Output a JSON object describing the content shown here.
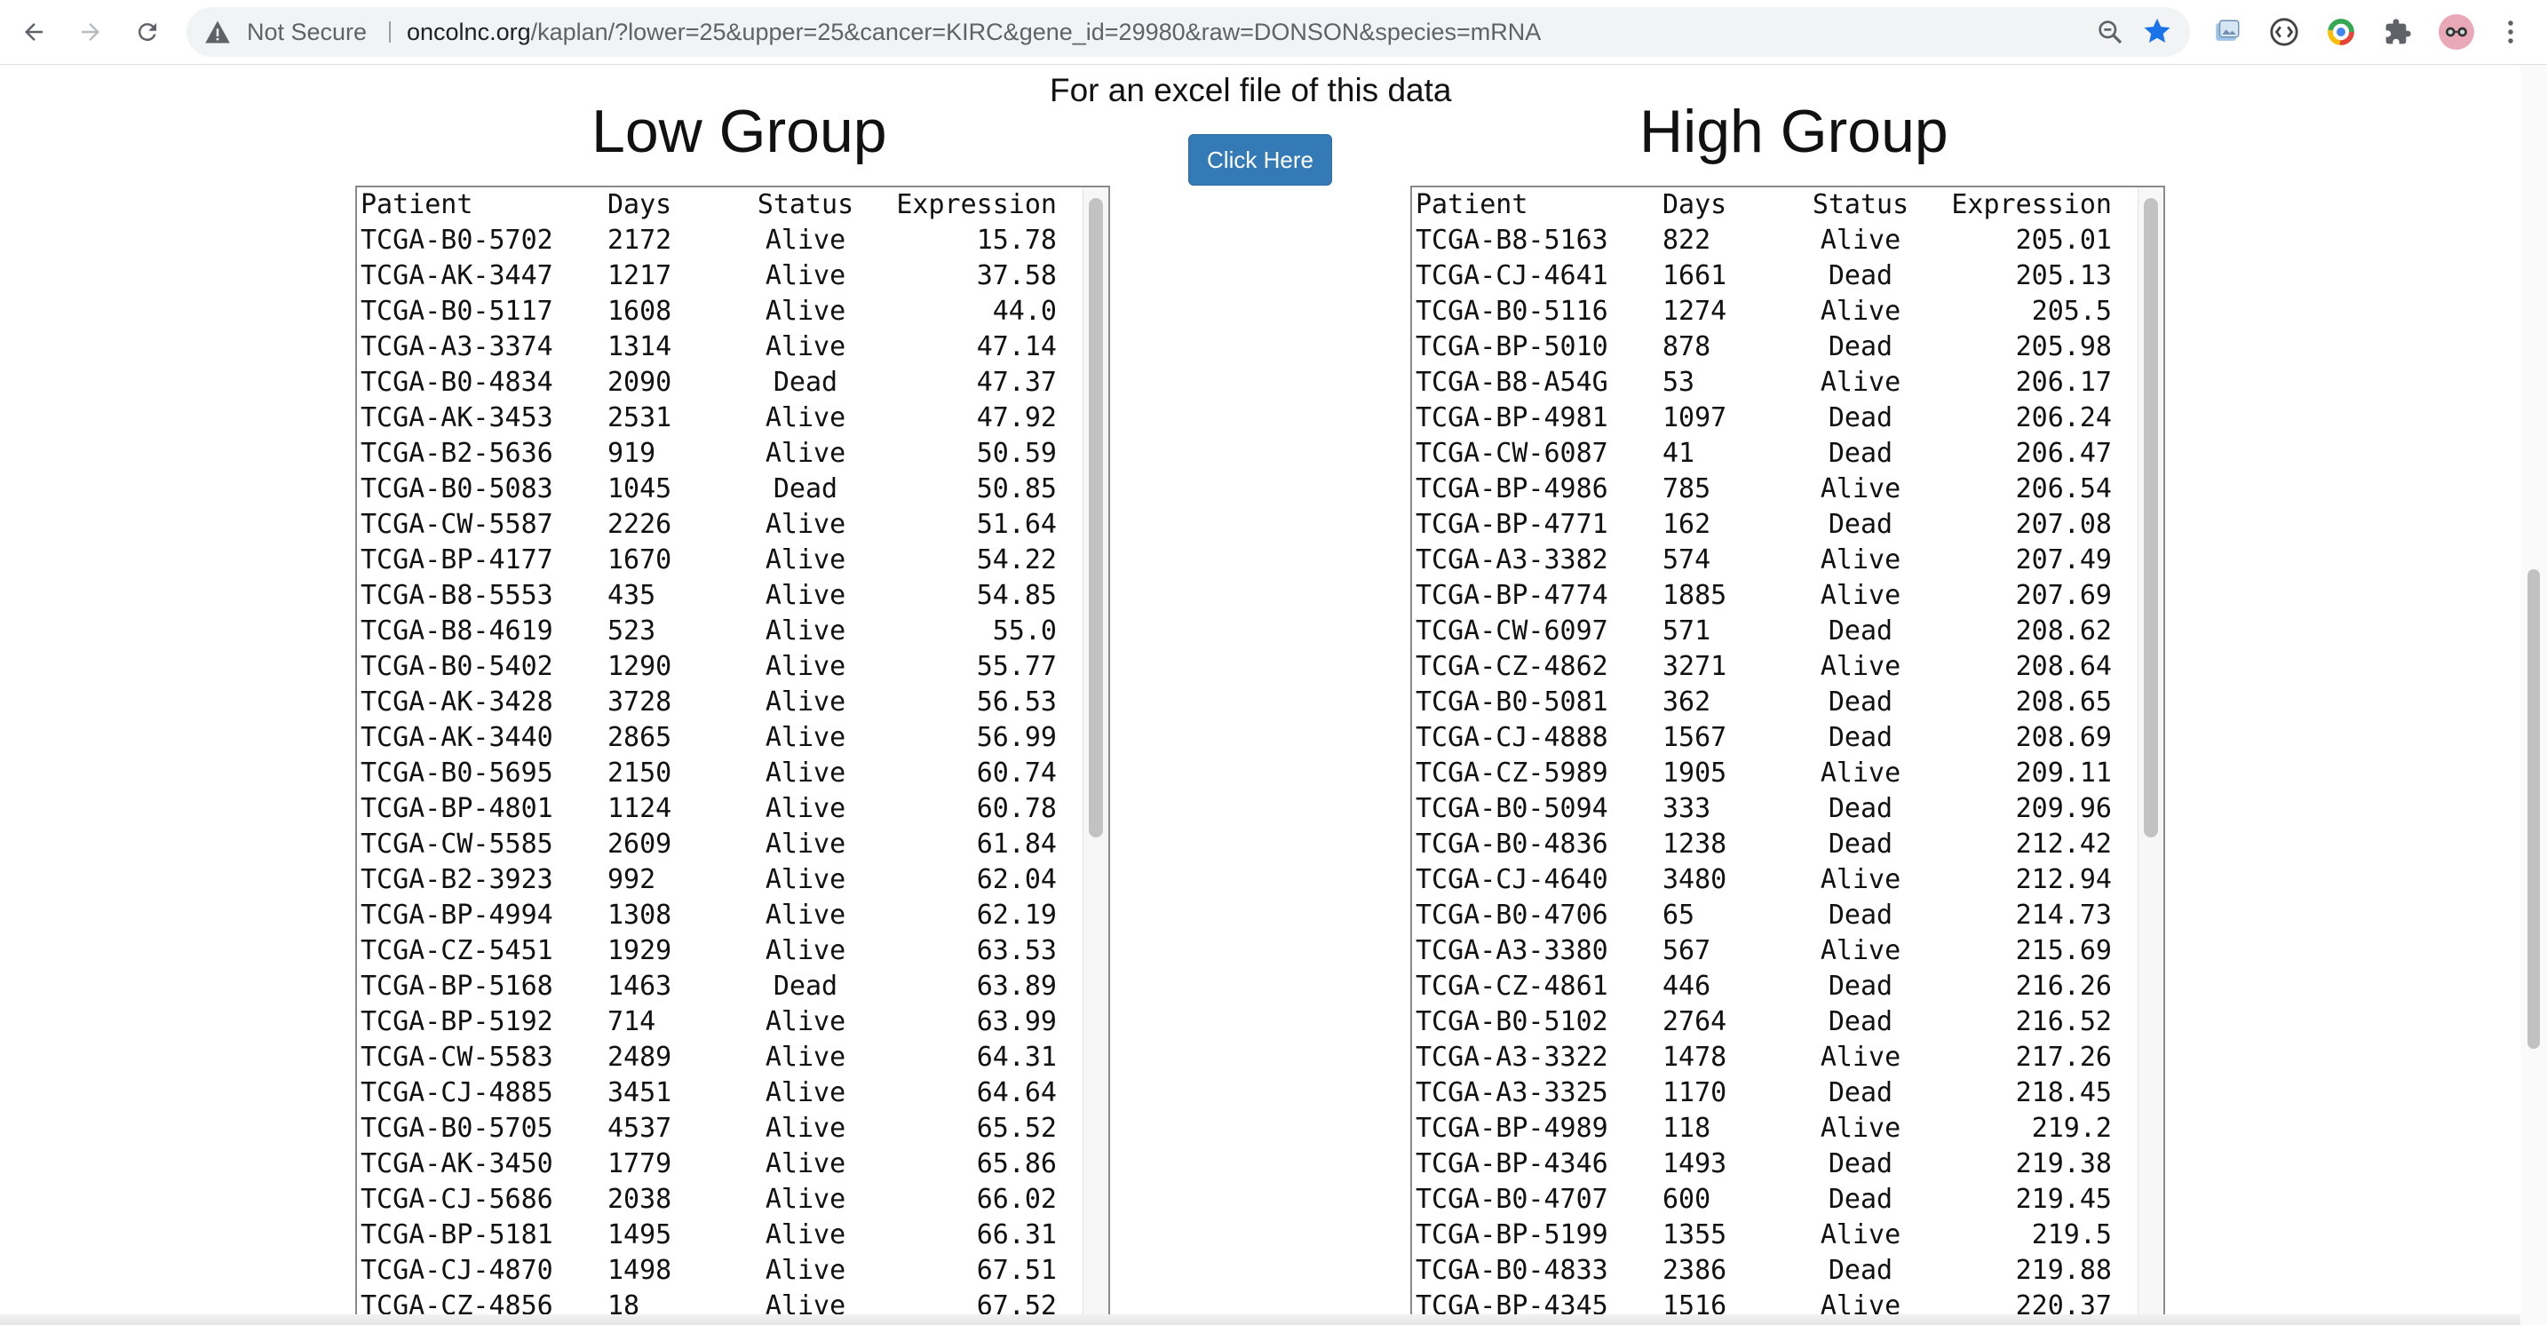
{
  "browser": {
    "security_label": "Not Secure",
    "url_host": "oncolnc.org",
    "url_path": "/kaplan/?lower=25&upper=25&cancer=KIRC&gene_id=29980&raw=DONSON&species=mRNA"
  },
  "page": {
    "excel_note": "For an excel file of this data",
    "click_label": "Click Here",
    "low_title": "Low Group",
    "high_title": "High Group",
    "columns": [
      "Patient",
      "Days",
      "Status",
      "Expression"
    ]
  },
  "low_rows": [
    [
      "TCGA-B0-5702",
      "2172",
      "Alive",
      "15.78"
    ],
    [
      "TCGA-AK-3447",
      "1217",
      "Alive",
      "37.58"
    ],
    [
      "TCGA-B0-5117",
      "1608",
      "Alive",
      "44.0"
    ],
    [
      "TCGA-A3-3374",
      "1314",
      "Alive",
      "47.14"
    ],
    [
      "TCGA-B0-4834",
      "2090",
      "Dead",
      "47.37"
    ],
    [
      "TCGA-AK-3453",
      "2531",
      "Alive",
      "47.92"
    ],
    [
      "TCGA-B2-5636",
      "919",
      "Alive",
      "50.59"
    ],
    [
      "TCGA-B0-5083",
      "1045",
      "Dead",
      "50.85"
    ],
    [
      "TCGA-CW-5587",
      "2226",
      "Alive",
      "51.64"
    ],
    [
      "TCGA-BP-4177",
      "1670",
      "Alive",
      "54.22"
    ],
    [
      "TCGA-B8-5553",
      "435",
      "Alive",
      "54.85"
    ],
    [
      "TCGA-B8-4619",
      "523",
      "Alive",
      "55.0"
    ],
    [
      "TCGA-B0-5402",
      "1290",
      "Alive",
      "55.77"
    ],
    [
      "TCGA-AK-3428",
      "3728",
      "Alive",
      "56.53"
    ],
    [
      "TCGA-AK-3440",
      "2865",
      "Alive",
      "56.99"
    ],
    [
      "TCGA-B0-5695",
      "2150",
      "Alive",
      "60.74"
    ],
    [
      "TCGA-BP-4801",
      "1124",
      "Alive",
      "60.78"
    ],
    [
      "TCGA-CW-5585",
      "2609",
      "Alive",
      "61.84"
    ],
    [
      "TCGA-B2-3923",
      "992",
      "Alive",
      "62.04"
    ],
    [
      "TCGA-BP-4994",
      "1308",
      "Alive",
      "62.19"
    ],
    [
      "TCGA-CZ-5451",
      "1929",
      "Alive",
      "63.53"
    ],
    [
      "TCGA-BP-5168",
      "1463",
      "Dead",
      "63.89"
    ],
    [
      "TCGA-BP-5192",
      "714",
      "Alive",
      "63.99"
    ],
    [
      "TCGA-CW-5583",
      "2489",
      "Alive",
      "64.31"
    ],
    [
      "TCGA-CJ-4885",
      "3451",
      "Alive",
      "64.64"
    ],
    [
      "TCGA-B0-5705",
      "4537",
      "Alive",
      "65.52"
    ],
    [
      "TCGA-AK-3450",
      "1779",
      "Alive",
      "65.86"
    ],
    [
      "TCGA-CJ-5686",
      "2038",
      "Alive",
      "66.02"
    ],
    [
      "TCGA-BP-5181",
      "1495",
      "Alive",
      "66.31"
    ],
    [
      "TCGA-CJ-4870",
      "1498",
      "Alive",
      "67.51"
    ],
    [
      "TCGA-CZ-4856",
      "18",
      "Alive",
      "67.52"
    ]
  ],
  "high_rows": [
    [
      "TCGA-B8-5163",
      "822",
      "Alive",
      "205.01"
    ],
    [
      "TCGA-CJ-4641",
      "1661",
      "Dead",
      "205.13"
    ],
    [
      "TCGA-B0-5116",
      "1274",
      "Alive",
      "205.5"
    ],
    [
      "TCGA-BP-5010",
      "878",
      "Dead",
      "205.98"
    ],
    [
      "TCGA-B8-A54G",
      "53",
      "Alive",
      "206.17"
    ],
    [
      "TCGA-BP-4981",
      "1097",
      "Dead",
      "206.24"
    ],
    [
      "TCGA-CW-6087",
      "41",
      "Dead",
      "206.47"
    ],
    [
      "TCGA-BP-4986",
      "785",
      "Alive",
      "206.54"
    ],
    [
      "TCGA-BP-4771",
      "162",
      "Dead",
      "207.08"
    ],
    [
      "TCGA-A3-3382",
      "574",
      "Alive",
      "207.49"
    ],
    [
      "TCGA-BP-4774",
      "1885",
      "Alive",
      "207.69"
    ],
    [
      "TCGA-CW-6097",
      "571",
      "Dead",
      "208.62"
    ],
    [
      "TCGA-CZ-4862",
      "3271",
      "Alive",
      "208.64"
    ],
    [
      "TCGA-B0-5081",
      "362",
      "Dead",
      "208.65"
    ],
    [
      "TCGA-CJ-4888",
      "1567",
      "Dead",
      "208.69"
    ],
    [
      "TCGA-CZ-5989",
      "1905",
      "Alive",
      "209.11"
    ],
    [
      "TCGA-B0-5094",
      "333",
      "Dead",
      "209.96"
    ],
    [
      "TCGA-B0-4836",
      "1238",
      "Dead",
      "212.42"
    ],
    [
      "TCGA-CJ-4640",
      "3480",
      "Alive",
      "212.94"
    ],
    [
      "TCGA-B0-4706",
      "65",
      "Dead",
      "214.73"
    ],
    [
      "TCGA-A3-3380",
      "567",
      "Alive",
      "215.69"
    ],
    [
      "TCGA-CZ-4861",
      "446",
      "Dead",
      "216.26"
    ],
    [
      "TCGA-B0-5102",
      "2764",
      "Dead",
      "216.52"
    ],
    [
      "TCGA-A3-3322",
      "1478",
      "Alive",
      "217.26"
    ],
    [
      "TCGA-A3-3325",
      "1170",
      "Dead",
      "218.45"
    ],
    [
      "TCGA-BP-4989",
      "118",
      "Alive",
      "219.2"
    ],
    [
      "TCGA-BP-4346",
      "1493",
      "Dead",
      "219.38"
    ],
    [
      "TCGA-B0-4707",
      "600",
      "Dead",
      "219.45"
    ],
    [
      "TCGA-BP-5199",
      "1355",
      "Alive",
      "219.5"
    ],
    [
      "TCGA-B0-4833",
      "2386",
      "Dead",
      "219.88"
    ],
    [
      "TCGA-BP-4345",
      "1516",
      "Alive",
      "220.37"
    ]
  ],
  "colors": {
    "button_bg": "#337ab7",
    "star": "#1a73e8",
    "profile": "#e8a8b8"
  },
  "icons": [
    "back-icon",
    "forward-icon",
    "reload-icon",
    "warning-icon",
    "zoom-icon",
    "bookmark-star-icon",
    "extension-icons",
    "puzzle-icon",
    "profile-avatar",
    "menu-icon"
  ]
}
